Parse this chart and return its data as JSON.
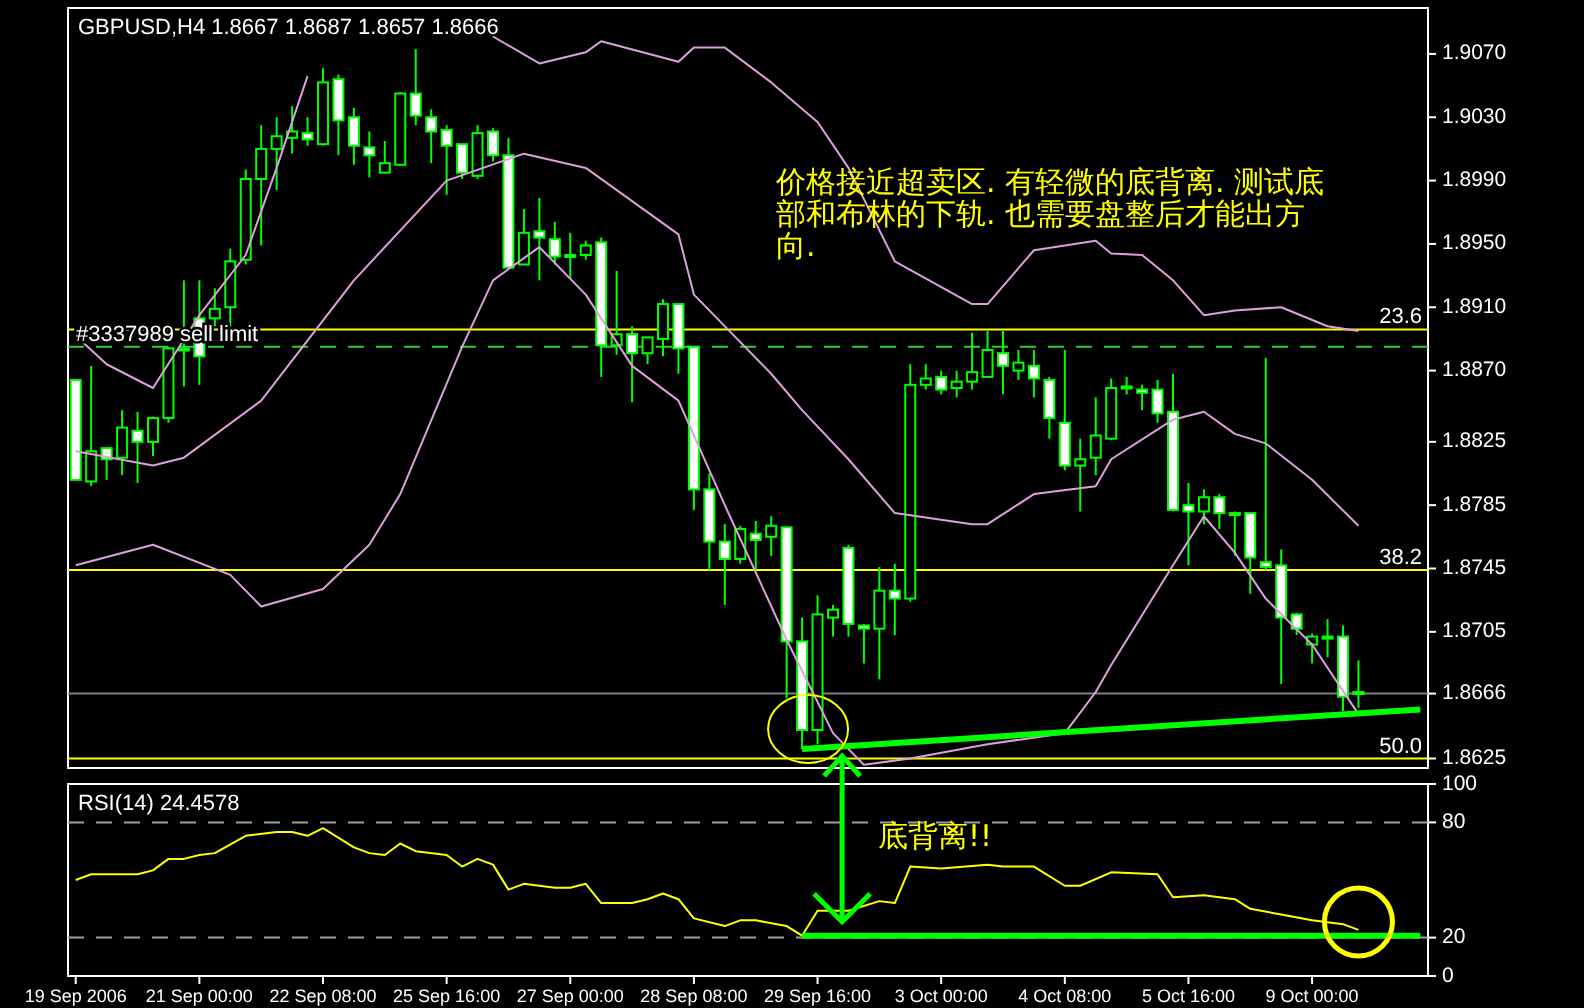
{
  "chart_data": [
    {
      "type": "candlestick",
      "title": "GBPUSD,H4  1.8667 1.8687 1.8657 1.8666",
      "color": "#00ff00",
      "tick_labels": "y",
      "categories": [
        null,
        null,
        null,
        null,
        null,
        null,
        null,
        null,
        null,
        null,
        null,
        null,
        null,
        null,
        null,
        null,
        null,
        null,
        null,
        null,
        null,
        null,
        null,
        null,
        null,
        null,
        null,
        null,
        null,
        null,
        null,
        null,
        null,
        null,
        null,
        null,
        null,
        null,
        null,
        null,
        null,
        null,
        null,
        null,
        null,
        null,
        null,
        null,
        null,
        null,
        null,
        null,
        null,
        null,
        null,
        null,
        null,
        null,
        null,
        null,
        null,
        null,
        null,
        null,
        null,
        null,
        null,
        null,
        null,
        null,
        null,
        null,
        null,
        null,
        null,
        null,
        null,
        null,
        null,
        null,
        null,
        null,
        null,
        null,
        null,
        null,
        null,
        null
      ],
      "ylim": [
        1.8619,
        1.9099
      ],
      "yticks": [
        {
          "value": 1.907,
          "label": "1.9070"
        },
        {
          "value": 1.903,
          "label": "1.9030"
        },
        {
          "value": 1.899,
          "label": "1.8990"
        },
        {
          "value": 1.895,
          "label": "1.8950"
        },
        {
          "value": 1.891,
          "label": "1.8910"
        },
        {
          "value": 1.887,
          "label": "1.8870"
        },
        1.8825,
        1.8785,
        1.8745,
        1.8705,
        1.8666,
        1.8625
      ],
      "ohlc": [
        [
          1.8864,
          1.8864,
          1.8801,
          1.8801
        ],
        [
          1.88,
          1.8873,
          1.8797,
          1.8819
        ],
        [
          1.8821,
          1.8821,
          1.8801,
          1.8814
        ],
        [
          1.8815,
          1.8845,
          1.8804,
          1.8834
        ],
        [
          1.8832,
          1.8844,
          1.8799,
          1.8825
        ],
        [
          1.8825,
          1.8841,
          1.8816,
          1.884
        ],
        [
          1.884,
          1.8885,
          1.8837,
          1.8884
        ],
        [
          1.8883,
          1.8927,
          1.886,
          1.8884
        ],
        [
          1.8903,
          1.8927,
          1.8861,
          1.8879
        ],
        [
          1.8903,
          1.8922,
          1.8898,
          1.8909
        ],
        [
          1.891,
          1.8947,
          1.8898,
          1.8939
        ],
        [
          1.894,
          1.8997,
          1.8937,
          1.8991
        ],
        [
          1.8991,
          1.9025,
          1.8949,
          1.901
        ],
        [
          1.901,
          1.903,
          1.8984,
          1.9018
        ],
        [
          1.9017,
          1.9037,
          1.9007,
          1.9021
        ],
        [
          1.902,
          1.903,
          1.9012,
          1.9016
        ],
        [
          1.9013,
          1.9061,
          1.9012,
          1.9052
        ],
        [
          1.9054,
          1.9057,
          1.9006,
          1.9028
        ],
        [
          1.903,
          1.9036,
          1.9,
          1.9012
        ],
        [
          1.9011,
          1.9021,
          1.8992,
          1.9006
        ],
        [
          1.8995,
          1.9015,
          1.8995,
          1.9001
        ],
        [
          1.9,
          1.9046,
          1.9,
          1.9045
        ],
        [
          1.9045,
          1.9073,
          1.9025,
          1.9031
        ],
        [
          1.903,
          1.9035,
          1.9001,
          1.9021
        ],
        [
          1.9022,
          1.9025,
          1.8981,
          1.9012
        ],
        [
          1.9013,
          1.9013,
          1.8991,
          1.8995
        ],
        [
          1.8993,
          1.9025,
          1.8991,
          1.902
        ],
        [
          1.9021,
          1.9023,
          1.9002,
          1.9006
        ],
        [
          1.9006,
          1.9017,
          1.8935,
          1.8935
        ],
        [
          1.8937,
          1.8972,
          1.8937,
          1.8957
        ],
        [
          1.8958,
          1.8979,
          1.8927,
          1.8954
        ],
        [
          1.8953,
          1.8964,
          1.8937,
          1.8942
        ],
        [
          1.8942,
          1.8957,
          1.8928,
          1.8943
        ],
        [
          1.8943,
          1.8952,
          1.894,
          1.8949
        ],
        [
          1.8951,
          1.8954,
          1.8866,
          1.8886
        ],
        [
          1.8886,
          1.8933,
          1.888,
          1.8893
        ],
        [
          1.8893,
          1.8898,
          1.885,
          1.8881
        ],
        [
          1.8881,
          1.8891,
          1.8874,
          1.8891
        ],
        [
          1.889,
          1.8915,
          1.8879,
          1.8912
        ],
        [
          1.8912,
          1.8912,
          1.8868,
          1.8884
        ],
        [
          1.8885,
          1.8885,
          1.8782,
          1.8795
        ],
        [
          1.8795,
          1.8805,
          1.8744,
          1.8762
        ],
        [
          1.8762,
          1.8773,
          1.8722,
          1.8751
        ],
        [
          1.8751,
          1.8772,
          1.8748,
          1.877
        ],
        [
          1.8767,
          1.8775,
          1.8744,
          1.8763
        ],
        [
          1.8765,
          1.8778,
          1.8753,
          1.8772
        ],
        [
          1.8771,
          1.8771,
          1.8663,
          1.8699
        ],
        [
          1.8699,
          1.8714,
          1.8631,
          1.8643
        ],
        [
          1.8643,
          1.8728,
          1.8634,
          1.8716
        ],
        [
          1.8714,
          1.8722,
          1.8702,
          1.8719
        ],
        [
          1.8758,
          1.876,
          1.8702,
          1.871
        ],
        [
          1.8709,
          1.871,
          1.8685,
          1.8707
        ],
        [
          1.8707,
          1.8746,
          1.8675,
          1.8731
        ],
        [
          1.8731,
          1.8748,
          1.8703,
          1.8726
        ],
        [
          1.8726,
          1.8874,
          1.8724,
          1.8861
        ],
        [
          1.8861,
          1.8874,
          1.8858,
          1.8865
        ],
        [
          1.8866,
          1.887,
          1.8855,
          1.8858
        ],
        [
          1.8859,
          1.887,
          1.8853,
          1.8863
        ],
        [
          1.8863,
          1.8894,
          1.8858,
          1.8869
        ],
        [
          1.8866,
          1.8895,
          1.8866,
          1.8883
        ],
        [
          1.8881,
          1.8895,
          1.8855,
          1.8873
        ],
        [
          1.887,
          1.8883,
          1.8864,
          1.8875
        ],
        [
          1.8873,
          1.8883,
          1.8853,
          1.8865
        ],
        [
          1.8864,
          1.8866,
          1.8827,
          1.884
        ],
        [
          1.8837,
          1.8883,
          1.8807,
          1.881
        ],
        [
          1.881,
          1.8827,
          1.8781,
          1.8814
        ],
        [
          1.8815,
          1.8853,
          1.8804,
          1.8829
        ],
        [
          1.8827,
          1.8865,
          1.8826,
          1.8859
        ],
        [
          1.8859,
          1.8866,
          1.8855,
          1.886
        ],
        [
          1.8858,
          1.8861,
          1.8845,
          1.8856
        ],
        [
          1.8858,
          1.8864,
          1.8837,
          1.8843
        ],
        [
          1.8844,
          1.8868,
          1.8781,
          1.8782
        ],
        [
          1.8785,
          1.8799,
          1.8747,
          1.8781
        ],
        [
          1.8781,
          1.8795,
          1.8773,
          1.879
        ],
        [
          1.879,
          1.8792,
          1.877,
          1.878
        ],
        [
          1.878,
          1.8781,
          1.8753,
          1.8779
        ],
        [
          1.878,
          1.878,
          1.8729,
          1.8752
        ],
        [
          1.8749,
          1.8878,
          1.8744,
          1.8746
        ],
        [
          1.8747,
          1.8757,
          1.8672,
          1.8714
        ],
        [
          1.8716,
          1.8717,
          1.8703,
          1.8707
        ],
        [
          1.8697,
          1.8704,
          1.8685,
          1.8702
        ],
        [
          1.8702,
          1.8713,
          1.8689,
          1.8702
        ],
        [
          1.8702,
          1.8709,
          1.8655,
          1.8664
        ],
        [
          1.8667,
          1.8687,
          1.8657,
          1.8666
        ],
        null,
        null,
        null,
        null
      ],
      "series": [
        {
          "type": "line",
          "color": "#dda0dd",
          "values": [
            1.8892,
            null,
            1.8874,
            null,
            null,
            1.8859,
            null,
            null,
            1.8905,
            null,
            null,
            1.8943,
            null,
            1.8998,
            null,
            1.9056,
            null,
            null,
            null,
            null,
            null,
            null,
            null,
            null,
            null,
            null,
            null,
            null,
            null,
            null,
            null,
            null,
            null,
            null,
            null,
            null,
            null,
            null,
            null,
            null,
            null,
            null,
            null,
            null,
            null,
            null,
            null,
            null,
            null,
            null,
            null,
            null,
            null,
            null,
            null,
            null,
            null,
            null,
            null,
            null,
            null,
            null,
            null,
            null,
            null,
            null,
            null,
            null,
            null,
            null,
            null,
            null,
            null,
            null,
            null,
            null,
            null,
            null,
            null,
            null,
            null,
            null,
            null,
            null,
            null,
            null,
            null,
            null
          ]
        },
        {
          "type": "line",
          "color": "#dda0dd",
          "values": [
            null,
            null,
            null,
            null,
            null,
            null,
            null,
            null,
            null,
            null,
            null,
            null,
            null,
            null,
            null,
            null,
            null,
            null,
            null,
            null,
            null,
            null,
            null,
            null,
            null,
            null,
            null,
            1.9081,
            null,
            null,
            1.9064,
            null,
            null,
            1.9071,
            1.9078,
            null,
            null,
            null,
            null,
            1.9065,
            1.9074,
            null,
            1.9074,
            null,
            null,
            1.9052,
            null,
            null,
            1.9027,
            null,
            1.8998,
            null,
            null,
            1.8939,
            null,
            null,
            null,
            null,
            1.8912,
            1.8912,
            null,
            null,
            1.8946,
            null,
            null,
            null,
            1.8952,
            1.8944,
            null,
            1.8943,
            null,
            1.8927,
            null,
            1.8905,
            null,
            1.8908,
            null,
            null,
            1.891,
            null,
            null,
            1.8898,
            null,
            1.8895,
            null,
            null,
            null,
            null
          ]
        },
        {
          "type": "line",
          "color": "#dda0dd",
          "values": [
            1.8819,
            null,
            null,
            null,
            null,
            1.881,
            null,
            1.8815,
            null,
            null,
            null,
            null,
            1.8851,
            null,
            null,
            null,
            null,
            null,
            1.8927,
            null,
            null,
            null,
            null,
            null,
            1.899,
            null,
            null,
            null,
            null,
            1.9007,
            null,
            null,
            null,
            1.8998,
            null,
            null,
            1.8977,
            null,
            null,
            1.8956,
            1.8918,
            null,
            null,
            null,
            null,
            1.8868,
            null,
            1.8845,
            null,
            null,
            1.8814,
            null,
            null,
            1.878,
            null,
            null,
            null,
            null,
            1.8773,
            1.8773,
            null,
            null,
            1.8792,
            null,
            null,
            null,
            1.8797,
            1.8814,
            null,
            null,
            null,
            1.8839,
            null,
            1.8844,
            null,
            1.883,
            null,
            1.8824,
            null,
            null,
            1.8801,
            null,
            null,
            1.8772,
            null,
            null,
            null,
            null
          ]
        },
        {
          "type": "line",
          "color": "#dda0dd",
          "values": [
            1.8747,
            null,
            null,
            null,
            null,
            1.876,
            null,
            null,
            null,
            null,
            1.8741,
            null,
            1.8721,
            null,
            null,
            null,
            1.8732,
            null,
            null,
            1.876,
            null,
            1.8792,
            null,
            null,
            null,
            1.8885,
            null,
            1.8927,
            null,
            null,
            1.8948,
            null,
            null,
            1.8918,
            null,
            null,
            1.8873,
            null,
            null,
            1.8851,
            null,
            null,
            1.8785,
            null,
            null,
            null,
            1.87,
            null,
            null,
            1.8641,
            null,
            1.8621,
            null,
            null,
            1.8625,
            null,
            null,
            null,
            null,
            1.8634,
            null,
            null,
            null,
            null,
            1.8641,
            null,
            1.8667,
            1.8684,
            null,
            null,
            null,
            1.8747,
            null,
            1.8778,
            null,
            1.8755,
            null,
            1.8726,
            null,
            null,
            1.8697,
            null,
            null,
            1.8653,
            null,
            null,
            null,
            null
          ]
        },
        {
          "type": "line",
          "color": "#00ff00",
          "values": [
            null,
            null,
            null,
            null,
            null,
            null,
            null,
            null,
            null,
            null,
            null,
            null,
            null,
            null,
            null,
            null,
            null,
            null,
            null,
            null,
            null,
            null,
            null,
            null,
            null,
            null,
            null,
            null,
            null,
            null,
            null,
            null,
            null,
            null,
            null,
            null,
            null,
            null,
            null,
            null,
            null,
            null,
            null,
            null,
            null,
            null,
            null,
            1.8631,
            null,
            null,
            null,
            null,
            null,
            null,
            null,
            null,
            null,
            null,
            null,
            null,
            null,
            null,
            null,
            null,
            null,
            null,
            null,
            null,
            null,
            null,
            null,
            null,
            null,
            null,
            null,
            null,
            null,
            null,
            null,
            null,
            null,
            null,
            null,
            null,
            null,
            null,
            null,
            1.8656
          ]
        }
      ],
      "ref_lines": [
        {
          "axis": "y",
          "value": 1.8896,
          "color": "#ffff00"
        },
        {
          "axis": "y",
          "value": 1.8744,
          "color": "#ffff00"
        },
        {
          "axis": "y",
          "value": 1.8625,
          "color": "#ffff00"
        },
        {
          "axis": "y",
          "value": 1.8666,
          "color": "#808080"
        },
        {
          "axis": "y",
          "value": 1.8885,
          "label": "#3337989 sell limit",
          "color": "#32cd32",
          "line_style": "dashed"
        }
      ],
      "annotations": [
        "价格接近超卖区. 有轻微的底背离. 测试底部和布林的下轨. 也需要盘整后才能出方向.",
        {
          "text": "23.6",
          "y": 1.8896
        },
        {
          "text": "38.2",
          "y": 1.8744
        },
        {
          "text": "50.0",
          "y": 1.8625
        }
      ]
    },
    {
      "type": "line",
      "title": "RSI(14) 24.4578",
      "ylim": [
        0,
        100
      ],
      "yticks": [
        0,
        20,
        80,
        100
      ],
      "categories": [
        "19 Sep 2006",
        null,
        null,
        null,
        null,
        null,
        null,
        null,
        "21 Sep 00:00",
        null,
        null,
        null,
        null,
        null,
        null,
        null,
        "22 Sep 08:00",
        null,
        null,
        null,
        null,
        null,
        null,
        null,
        "25 Sep 16:00",
        null,
        null,
        null,
        null,
        null,
        null,
        null,
        "27 Sep 00:00",
        null,
        null,
        null,
        null,
        null,
        null,
        null,
        "28 Sep 08:00",
        null,
        null,
        null,
        null,
        null,
        null,
        null,
        "29 Sep 16:00",
        null,
        null,
        null,
        null,
        null,
        null,
        null,
        "3 Oct 00:00",
        null,
        null,
        null,
        null,
        null,
        null,
        null,
        "4 Oct 08:00",
        null,
        null,
        null,
        null,
        null,
        null,
        null,
        "5 Oct 16:00",
        null,
        null,
        null,
        null,
        null,
        null,
        null,
        "9 Oct 00:00",
        null,
        null,
        null,
        null,
        null,
        null,
        null
      ],
      "series": [
        {
          "color": "#ffff00",
          "values": [
            50,
            53,
            null,
            null,
            53,
            55,
            61,
            61,
            63,
            64,
            null,
            73,
            null,
            75,
            75,
            73,
            77,
            null,
            67,
            64,
            63,
            69,
            65,
            null,
            63,
            57,
            61,
            58,
            45,
            48,
            null,
            46,
            46,
            48,
            38,
            null,
            38,
            40,
            43,
            40,
            30,
            null,
            26,
            29,
            29,
            null,
            26,
            21,
            34,
            null,
            34,
            null,
            39,
            38,
            57,
            null,
            56,
            null,
            null,
            58,
            57,
            null,
            57,
            null,
            47,
            47,
            null,
            54,
            null,
            null,
            53,
            41,
            null,
            42,
            null,
            40,
            35,
            null,
            32,
            null,
            29,
            null,
            27,
            24,
            null,
            null,
            null,
            null
          ]
        },
        {
          "color": "#00ff00",
          "values": [
            null,
            null,
            null,
            null,
            null,
            null,
            null,
            null,
            null,
            null,
            null,
            null,
            null,
            null,
            null,
            null,
            null,
            null,
            null,
            null,
            null,
            null,
            null,
            null,
            null,
            null,
            null,
            null,
            null,
            null,
            null,
            null,
            null,
            null,
            null,
            null,
            null,
            null,
            null,
            null,
            null,
            null,
            null,
            null,
            null,
            null,
            null,
            21,
            null,
            null,
            null,
            null,
            null,
            null,
            null,
            null,
            null,
            null,
            null,
            null,
            null,
            null,
            null,
            null,
            null,
            null,
            null,
            null,
            null,
            null,
            null,
            null,
            null,
            null,
            null,
            null,
            null,
            null,
            null,
            null,
            null,
            null,
            null,
            null,
            null,
            null,
            null,
            21
          ]
        }
      ],
      "ref_lines": [
        {
          "axis": "y",
          "value": 80,
          "color": "#a0a0a0",
          "line_style": "dashed"
        },
        {
          "axis": "y",
          "value": 20,
          "color": "#a0a0a0",
          "line_style": "dashed"
        }
      ],
      "annotations": [
        "底背离!!"
      ]
    }
  ]
}
